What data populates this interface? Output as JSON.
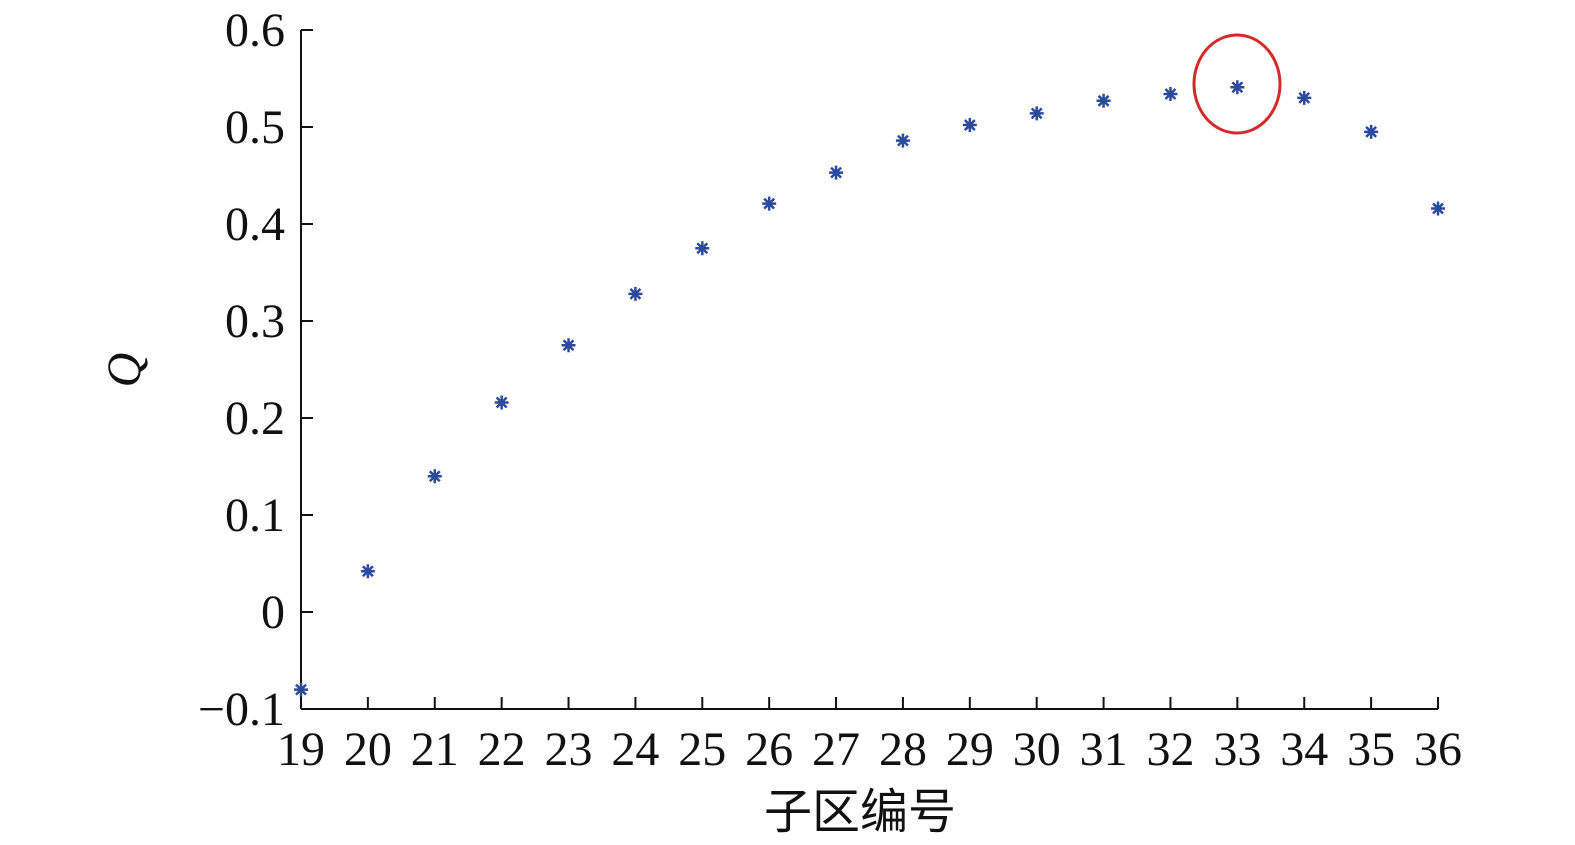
{
  "chart_data": {
    "type": "scatter",
    "x_label": "子区编号",
    "y_label": "Q",
    "x": [
      19,
      20,
      21,
      22,
      23,
      24,
      25,
      26,
      27,
      28,
      29,
      30,
      31,
      32,
      33,
      34,
      35,
      36
    ],
    "series": [
      {
        "color": "#2b4a9c",
        "values": [
          -0.08,
          0.042,
          0.14,
          0.216,
          0.275,
          0.328,
          0.375,
          0.421,
          0.453,
          0.486,
          0.502,
          0.514,
          0.527,
          0.534,
          0.541,
          0.53,
          0.495,
          0.416
        ]
      }
    ],
    "xlim": [
      19,
      36
    ],
    "xticks": [
      19,
      20,
      21,
      22,
      23,
      24,
      25,
      26,
      27,
      28,
      29,
      30,
      31,
      32,
      33,
      34,
      35,
      36
    ],
    "ylim": [
      -0.1,
      0.6
    ],
    "yticks": [
      {
        "value": -0.1,
        "label": "−0.1"
      },
      0,
      0.1,
      0.2,
      0.3,
      0.4,
      0.5,
      0.6
    ],
    "grid": false
  }
}
